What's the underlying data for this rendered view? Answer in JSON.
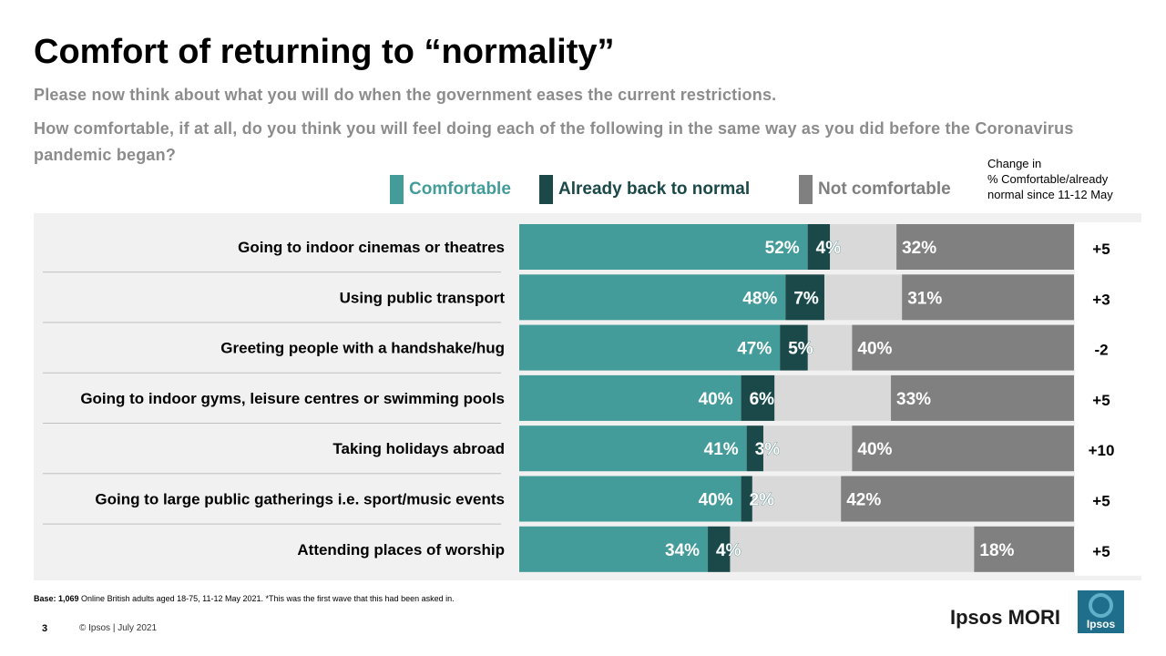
{
  "title": "Comfort of returning to “normality”",
  "subtitle1": "Please now think about what you will do when the government eases the current restrictions.",
  "subtitle2": "How comfortable, if at all, do you think you will feel doing each of the following in the same way as you did before the Coronavirus pandemic began?",
  "legend": {
    "comfortable": "Comfortable",
    "already": "Already back to normal",
    "not_comfortable": "Not comfortable"
  },
  "change_header": {
    "line1": "Change in",
    "line2": "% Comfortable/already",
    "line3": "normal since 11-12 May"
  },
  "colors": {
    "comfortable": "#439c9a",
    "already": "#1b4848",
    "not_comfortable": "#808080",
    "remainder": "#d9d9d9",
    "legend_comfortable_text": "#439c9a",
    "legend_already_text": "#1b4848",
    "legend_not_text": "#7f7f7f"
  },
  "chart_data": {
    "type": "bar",
    "orientation": "horizontal",
    "stacked": true,
    "categories": [
      "Going to indoor cinemas or theatres",
      "Using public transport",
      "Greeting people with a handshake/hug",
      "Going to indoor gyms, leisure centres or swimming pools",
      "Taking holidays abroad",
      "Going to large public gatherings i.e. sport/music events",
      "Attending places of worship"
    ],
    "series": [
      {
        "name": "Comfortable",
        "values": [
          52,
          48,
          47,
          40,
          41,
          40,
          34
        ]
      },
      {
        "name": "Already back to normal",
        "values": [
          4,
          7,
          5,
          6,
          3,
          2,
          4
        ]
      },
      {
        "name": "Not comfortable",
        "values": [
          32,
          31,
          40,
          33,
          40,
          42,
          18
        ]
      }
    ],
    "change": [
      "+5",
      "+3",
      "-2",
      "+5",
      "+10",
      "+5",
      "+5"
    ],
    "xlim": [
      0,
      100
    ]
  },
  "footnote": {
    "base_label": "Base: 1,069",
    "base_text": " Online British adults aged 18-75, 11-12 May 2021. *This was the first wave that this had been asked in."
  },
  "page_number": "3",
  "copyright": "© Ipsos | July 2021",
  "brand": "Ipsos MORI",
  "logo_text": "Ipsos"
}
